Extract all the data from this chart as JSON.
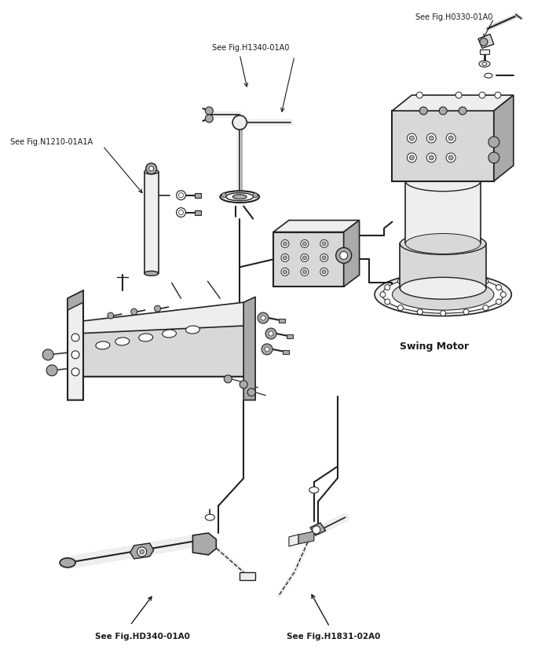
{
  "background_color": "#ffffff",
  "fig_width": 7.08,
  "fig_height": 8.51,
  "dpi": 100,
  "labels": {
    "see_fig_H0330": "See Fig.H0330-01A0",
    "see_fig_H1340": "See Fig.H1340-01A0",
    "see_fig_N1210": "See Fig.N1210-01A1A",
    "swing_motor": "Swing Motor",
    "see_fig_HD340": "See Fig.HD340-01A0",
    "see_fig_H1831": "See Fig.H1831-02A0"
  },
  "lc": "#1a1a1a",
  "tc": "#1a1a1a",
  "mg": "#777777",
  "dg": "#222222",
  "lg": "#bbbbbb",
  "fill1": "#d8d8d8",
  "fill2": "#eeeeee",
  "fill3": "#aaaaaa"
}
